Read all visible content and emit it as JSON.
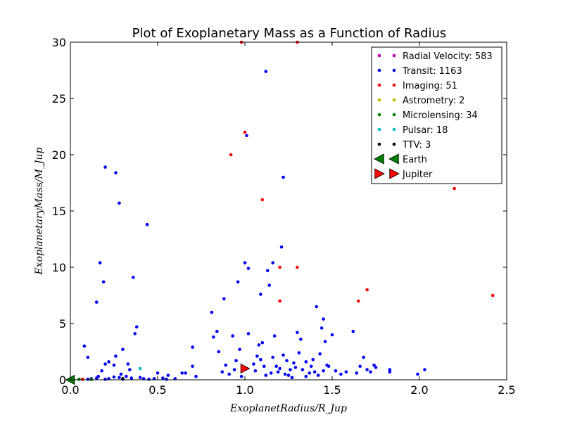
{
  "chart_data": {
    "type": "scatter",
    "title": "Plot of Exoplanetary Mass as a Function of Radius",
    "xlabel": "ExoplanetRadius/R_Jup",
    "ylabel": "ExoplanetaryMass/M_Jup",
    "xlim": [
      0,
      2.5
    ],
    "ylim": [
      0,
      30
    ],
    "xticks": [
      "0.0",
      "0.5",
      "1.0",
      "1.5",
      "2.0",
      "2.5"
    ],
    "yticks": [
      "0",
      "5",
      "10",
      "15",
      "20",
      "25",
      "30"
    ],
    "legend_position": "top-right",
    "grid": false,
    "series": [
      {
        "name": "Radial Velocity: 583",
        "color": "#bf00bf",
        "marker": "dot",
        "points": []
      },
      {
        "name": "Transit: 1163",
        "color": "#0000ff",
        "marker": "dot",
        "points": [
          [
            0.08,
            3.0
          ],
          [
            0.1,
            2.0
          ],
          [
            0.15,
            6.9
          ],
          [
            0.17,
            10.4
          ],
          [
            0.19,
            8.7
          ],
          [
            0.2,
            18.9
          ],
          [
            0.26,
            18.4
          ],
          [
            0.28,
            15.7
          ],
          [
            0.36,
            9.1
          ],
          [
            0.38,
            4.7
          ],
          [
            0.37,
            4.1
          ],
          [
            0.44,
            13.8
          ],
          [
            0.3,
            2.7
          ],
          [
            0.26,
            2.1
          ],
          [
            0.25,
            1.3
          ],
          [
            0.22,
            1.6
          ],
          [
            0.2,
            1.4
          ],
          [
            0.18,
            0.8
          ],
          [
            0.33,
            1.4
          ],
          [
            0.34,
            0.9
          ],
          [
            0.29,
            0.5
          ],
          [
            0.28,
            0.2
          ],
          [
            0.16,
            0.3
          ],
          [
            0.12,
            0.1
          ],
          [
            0.22,
            0.1
          ],
          [
            0.32,
            0.3
          ],
          [
            0.4,
            0.2
          ],
          [
            0.5,
            0.6
          ],
          [
            0.56,
            0.4
          ],
          [
            0.6,
            0.1
          ],
          [
            0.64,
            0.6
          ],
          [
            0.66,
            0.6
          ],
          [
            0.7,
            1.2
          ],
          [
            0.7,
            2.9
          ],
          [
            0.72,
            0.3
          ],
          [
            0.81,
            6.0
          ],
          [
            0.82,
            3.8
          ],
          [
            0.84,
            4.3
          ],
          [
            0.85,
            2.5
          ],
          [
            0.88,
            7.2
          ],
          [
            0.89,
            1.3
          ],
          [
            0.91,
            0.5
          ],
          [
            0.93,
            3.9
          ],
          [
            0.95,
            1.7
          ],
          [
            0.96,
            8.7
          ],
          [
            0.97,
            2.7
          ],
          [
            1.0,
            10.4
          ],
          [
            1.01,
            21.7
          ],
          [
            1.02,
            9.9
          ],
          [
            1.02,
            4.1
          ],
          [
            1.05,
            1.4
          ],
          [
            1.07,
            2.1
          ],
          [
            1.08,
            3.1
          ],
          [
            1.09,
            7.6
          ],
          [
            1.1,
            3.3
          ],
          [
            1.11,
            1.2
          ],
          [
            1.12,
            27.4
          ],
          [
            1.13,
            9.7
          ],
          [
            1.14,
            8.4
          ],
          [
            1.16,
            10.4
          ],
          [
            1.17,
            3.9
          ],
          [
            1.18,
            1.2
          ],
          [
            1.2,
            1.0
          ],
          [
            1.21,
            11.8
          ],
          [
            1.22,
            18.0
          ],
          [
            1.22,
            2.2
          ],
          [
            1.24,
            1.7
          ],
          [
            1.26,
            0.9
          ],
          [
            1.28,
            1.5
          ],
          [
            1.3,
            4.2
          ],
          [
            1.31,
            2.4
          ],
          [
            1.32,
            3.6
          ],
          [
            1.35,
            1.6
          ],
          [
            1.38,
            1.2
          ],
          [
            1.4,
            0.7
          ],
          [
            1.41,
            6.5
          ],
          [
            1.43,
            2.3
          ],
          [
            1.44,
            4.6
          ],
          [
            1.45,
            5.4
          ],
          [
            1.46,
            3.4
          ],
          [
            1.48,
            1.2
          ],
          [
            1.5,
            4.0
          ],
          [
            1.52,
            0.8
          ],
          [
            1.55,
            0.5
          ],
          [
            1.58,
            0.7
          ],
          [
            1.62,
            4.3
          ],
          [
            1.64,
            0.6
          ],
          [
            1.66,
            1.2
          ],
          [
            1.68,
            2.0
          ],
          [
            1.7,
            0.9
          ],
          [
            1.72,
            0.7
          ],
          [
            1.74,
            1.3
          ],
          [
            1.75,
            1.1
          ],
          [
            1.83,
            0.7
          ],
          [
            1.83,
            0.9
          ],
          [
            1.99,
            0.5
          ],
          [
            2.03,
            0.9
          ],
          [
            1.06,
            0.8
          ],
          [
            1.15,
            0.6
          ],
          [
            1.25,
            0.4
          ],
          [
            1.35,
            0.3
          ],
          [
            1.45,
            0.8
          ],
          [
            1.12,
            0.4
          ],
          [
            1.19,
            0.7
          ],
          [
            1.23,
            0.5
          ],
          [
            1.27,
            0.2
          ],
          [
            1.33,
            0.9
          ],
          [
            1.37,
            0.6
          ],
          [
            1.42,
            0.4
          ],
          [
            0.98,
            0.3
          ],
          [
            0.94,
            0.9
          ],
          [
            0.87,
            0.7
          ],
          [
            1.09,
            1.8
          ],
          [
            1.16,
            2.0
          ],
          [
            1.29,
            1.1
          ],
          [
            1.39,
            1.8
          ],
          [
            1.47,
            1.3
          ],
          [
            0.1,
            0.05
          ],
          [
            0.2,
            0.05
          ],
          [
            0.3,
            0.05
          ],
          [
            0.45,
            0.05
          ],
          [
            0.55,
            0.05
          ],
          [
            0.15,
            0.15
          ],
          [
            0.25,
            0.25
          ],
          [
            0.35,
            0.15
          ],
          [
            0.42,
            0.1
          ],
          [
            0.48,
            0.1
          ],
          [
            0.53,
            0.15
          ]
        ]
      },
      {
        "name": "Imaging: 51",
        "color": "#ff0000",
        "marker": "dot",
        "points": [
          [
            0.98,
            30.0
          ],
          [
            1.3,
            30.0
          ],
          [
            1.0,
            22.0
          ],
          [
            0.92,
            20.0
          ],
          [
            1.1,
            16.0
          ],
          [
            2.2,
            17.0
          ],
          [
            1.2,
            10.0
          ],
          [
            1.3,
            10.0
          ],
          [
            1.2,
            7.0
          ],
          [
            1.65,
            7.0
          ],
          [
            1.7,
            8.0
          ],
          [
            2.42,
            7.5
          ],
          [
            0.07,
            0.05
          ]
        ]
      },
      {
        "name": "Astrometry: 2",
        "color": "#bfbf00",
        "marker": "dot",
        "points": []
      },
      {
        "name": "Microlensing: 34",
        "color": "#008000",
        "marker": "dot",
        "points": [
          [
            0.05,
            0.05
          ],
          [
            0.12,
            0.02
          ]
        ]
      },
      {
        "name": "Pulsar: 18",
        "color": "#00bfbf",
        "marker": "dot",
        "points": [
          [
            0.4,
            1.0
          ]
        ]
      },
      {
        "name": "TTV: 3",
        "color": "#000000",
        "marker": "dot",
        "points": [
          [
            0.3,
            0.1
          ]
        ]
      },
      {
        "name": "Earth",
        "color": "#008000",
        "marker": "triangle-left",
        "points": [
          [
            0.0,
            0.0
          ]
        ]
      },
      {
        "name": "Jupiter",
        "color": "#ff0000",
        "marker": "triangle-right",
        "points": [
          [
            1.0,
            1.0
          ]
        ]
      }
    ]
  }
}
